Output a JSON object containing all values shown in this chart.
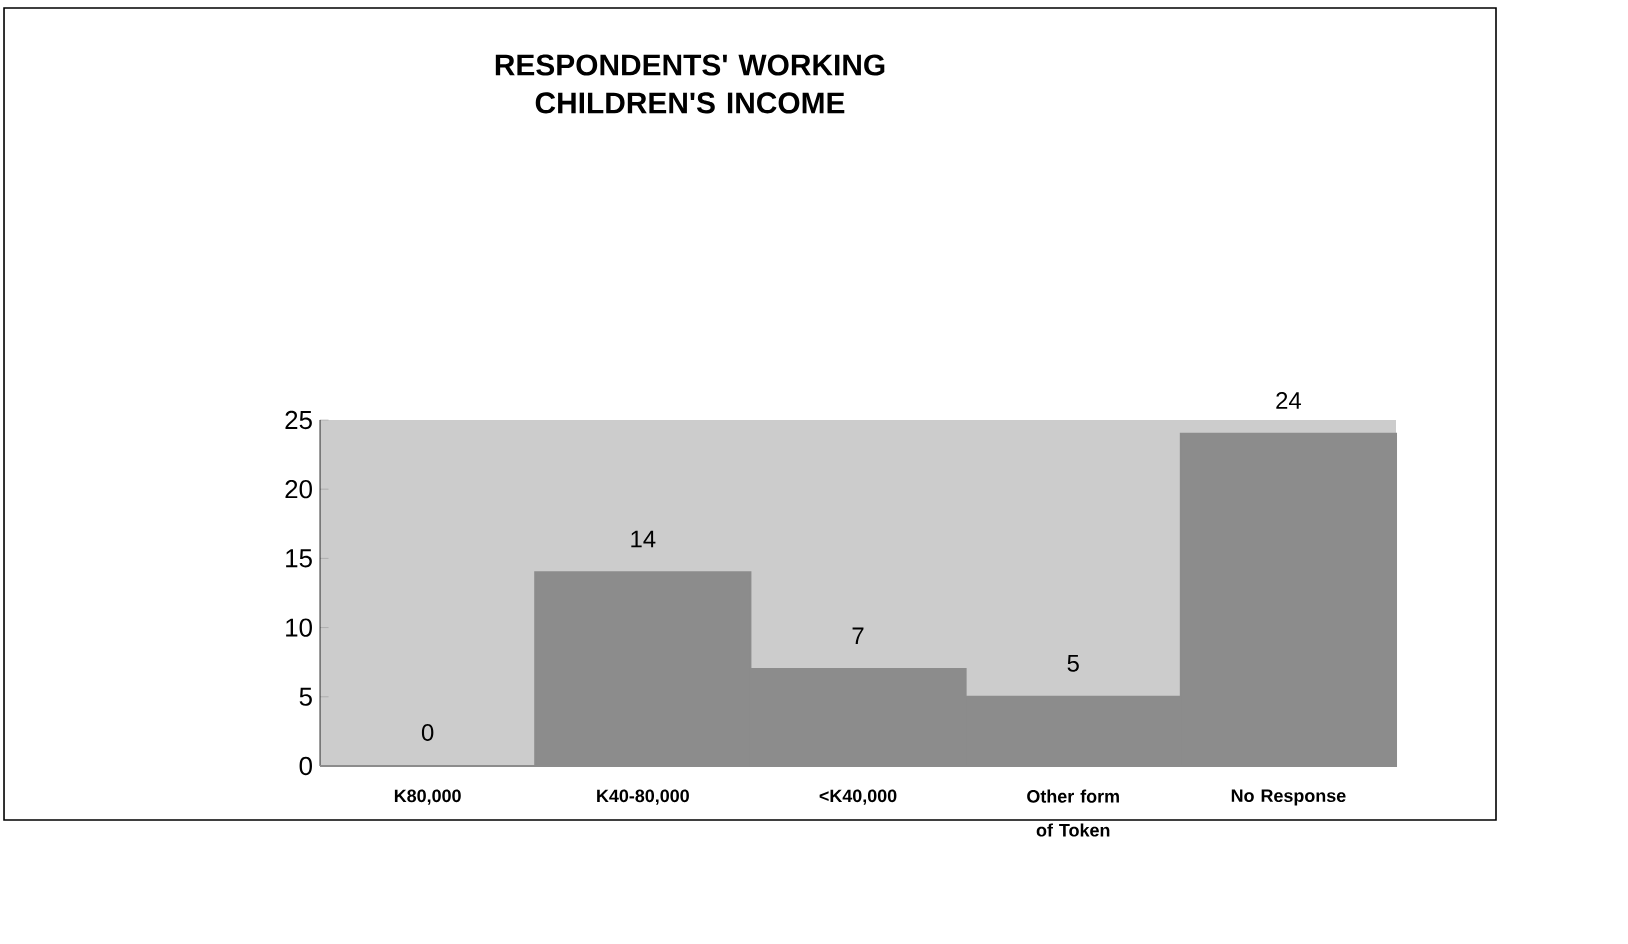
{
  "chart_data": {
    "type": "bar",
    "title": "RESPONDENTS' WORKING CHILDREN'S INCOME",
    "categories": [
      "K80,000",
      "K40-80,000",
      "<K40,000",
      "Other form of Token",
      "No Response"
    ],
    "values": [
      0,
      14,
      7,
      5,
      24
    ],
    "color": "#8c8c8c",
    "ylim": [
      0,
      25
    ],
    "yticks": [
      0,
      5,
      10,
      15,
      20,
      25
    ],
    "data_labels": true
  }
}
